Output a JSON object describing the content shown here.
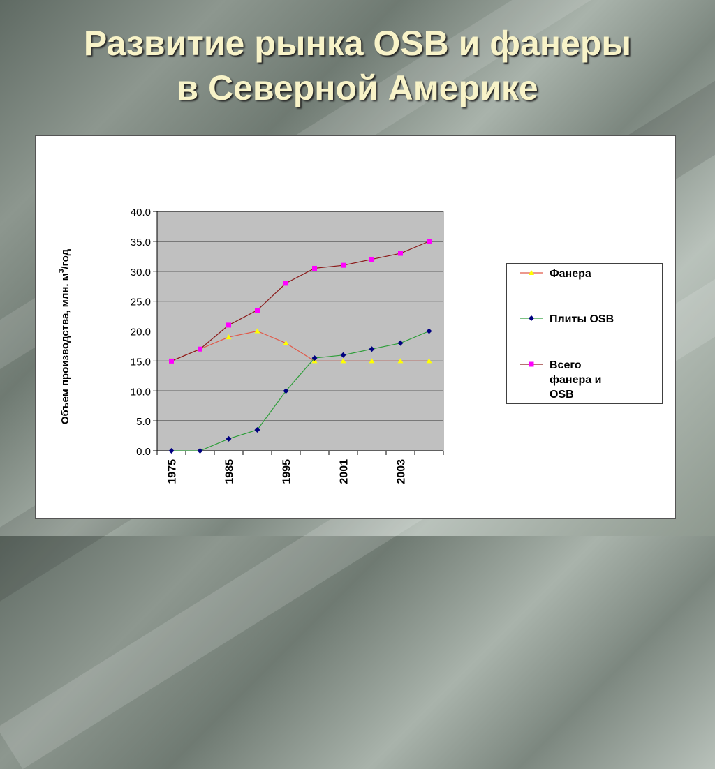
{
  "title": {
    "line1": "Развитие рынка OSB и фанеры",
    "line2": "в Северной Америке"
  },
  "chart_data": {
    "type": "line",
    "ylabel": "Объем производства, млн. м",
    "ylabel_sup": "3",
    "ylabel_suffix": "/год",
    "ylim": [
      0,
      40
    ],
    "yticks": [
      "0.0",
      "5.0",
      "10.0",
      "15.0",
      "20.0",
      "25.0",
      "30.0",
      "35.0",
      "40.0"
    ],
    "categories": [
      "1975",
      "",
      "1985",
      "",
      "1995",
      "",
      "2001",
      "",
      "2003",
      ""
    ],
    "grid": true,
    "plot_background": "#c0c0c0",
    "legend_position": "right",
    "series": [
      {
        "name": "Фанера",
        "line_color": "#e05a4a",
        "marker_color": "#ffff00",
        "marker": "triangle",
        "values": [
          15.0,
          17.0,
          19.0,
          20.0,
          18.0,
          15.0,
          15.0,
          15.0,
          15.0,
          15.0
        ]
      },
      {
        "name": "Плиты OSB",
        "line_color": "#2e9e3a",
        "marker_color": "#000080",
        "marker": "diamond",
        "values": [
          0.0,
          0.0,
          2.0,
          3.5,
          10.0,
          15.5,
          16.0,
          17.0,
          18.0,
          20.0
        ]
      },
      {
        "name": "Всего фанера и OSB",
        "line_color": "#8b1a1a",
        "marker_color": "#ff00ff",
        "marker": "square",
        "values": [
          15.0,
          17.0,
          21.0,
          23.5,
          28.0,
          30.5,
          31.0,
          32.0,
          33.0,
          35.0
        ]
      }
    ],
    "legend": [
      {
        "lines": [
          "Фанера"
        ]
      },
      {
        "lines": [
          "Плиты OSB"
        ]
      },
      {
        "lines": [
          "Всего",
          "фанера и",
          "OSB"
        ]
      }
    ]
  }
}
